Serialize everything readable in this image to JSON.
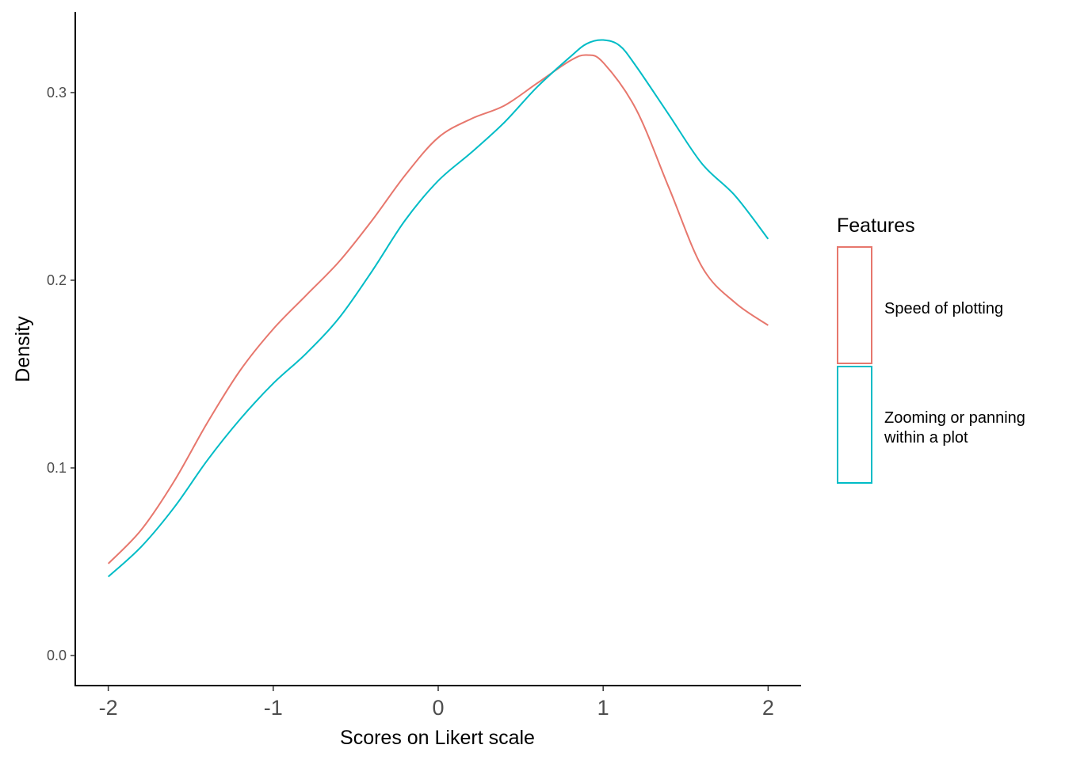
{
  "chart_data": {
    "type": "line",
    "title": "",
    "xlabel": "Scores on Likert scale",
    "ylabel": "Density",
    "xlim": [
      -2.2,
      2.2
    ],
    "ylim": [
      -0.016,
      0.343
    ],
    "x_ticks": [
      -2,
      -1,
      0,
      1,
      2
    ],
    "x_tick_labels": [
      "-2",
      "-1",
      "0",
      "1",
      "2"
    ],
    "y_ticks": [
      0.0,
      0.1,
      0.2,
      0.3
    ],
    "y_tick_labels": [
      "0.0",
      "0.1",
      "0.2",
      "0.3"
    ],
    "grid": false,
    "legend": {
      "title": "Features",
      "position": "right",
      "entries": [
        "Speed of plotting",
        "Zooming or panning within a plot"
      ]
    },
    "series": [
      {
        "name": "Speed of plotting",
        "color": "#e7776d",
        "x": [
          -2.0,
          -1.8,
          -1.6,
          -1.4,
          -1.2,
          -1.0,
          -0.8,
          -0.6,
          -0.4,
          -0.2,
          0.0,
          0.2,
          0.4,
          0.6,
          0.8,
          0.9,
          1.0,
          1.2,
          1.4,
          1.6,
          1.8,
          2.0
        ],
        "y": [
          0.049,
          0.067,
          0.093,
          0.124,
          0.152,
          0.174,
          0.192,
          0.21,
          0.232,
          0.256,
          0.276,
          0.286,
          0.293,
          0.305,
          0.317,
          0.32,
          0.316,
          0.291,
          0.249,
          0.207,
          0.188,
          0.176
        ]
      },
      {
        "name": "Zooming or panning within a plot",
        "color": "#00bcc6",
        "x": [
          -2.0,
          -1.8,
          -1.6,
          -1.4,
          -1.2,
          -1.0,
          -0.8,
          -0.6,
          -0.4,
          -0.2,
          0.0,
          0.2,
          0.4,
          0.6,
          0.8,
          0.9,
          1.0,
          1.1,
          1.2,
          1.4,
          1.6,
          1.8,
          2.0
        ],
        "y": [
          0.042,
          0.058,
          0.079,
          0.104,
          0.126,
          0.145,
          0.161,
          0.18,
          0.205,
          0.232,
          0.253,
          0.268,
          0.284,
          0.303,
          0.319,
          0.326,
          0.328,
          0.325,
          0.314,
          0.288,
          0.262,
          0.245,
          0.222
        ]
      }
    ]
  }
}
